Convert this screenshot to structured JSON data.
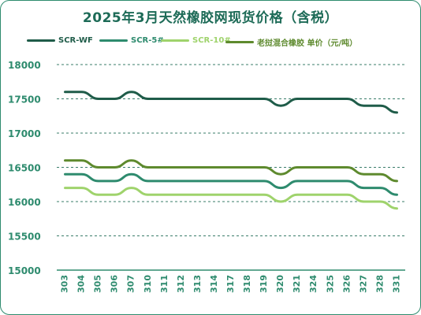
{
  "chart_data": {
    "type": "line",
    "title": "2025年3月天然橡胶网现货价格（含税）",
    "ylim": [
      15000,
      18000
    ],
    "yticks": [
      15000,
      15500,
      16000,
      16500,
      17000,
      17500,
      18000
    ],
    "grid": true,
    "legend_position": "top",
    "categories": [
      "303",
      "304",
      "305",
      "306",
      "307",
      "310",
      "311",
      "312",
      "313",
      "314",
      "317",
      "318",
      "319",
      "320",
      "321",
      "324",
      "325",
      "326",
      "327",
      "328",
      "331"
    ],
    "series": [
      {
        "name": "SCR-WF",
        "color": "#1f5c49",
        "values": [
          17600,
          17600,
          17500,
          17500,
          17600,
          17500,
          17500,
          17500,
          17500,
          17500,
          17500,
          17500,
          17500,
          17400,
          17500,
          17500,
          17500,
          17500,
          17400,
          17400,
          17300
        ]
      },
      {
        "name": "SCR-5#",
        "color": "#2e8b6e",
        "values": [
          16400,
          16400,
          16300,
          16300,
          16400,
          16300,
          16300,
          16300,
          16300,
          16300,
          16300,
          16300,
          16300,
          16200,
          16300,
          16300,
          16300,
          16300,
          16200,
          16200,
          16100
        ]
      },
      {
        "name": "SCR-10#",
        "color": "#9fd36c",
        "values": [
          16200,
          16200,
          16100,
          16100,
          16200,
          16100,
          16100,
          16100,
          16100,
          16100,
          16100,
          16100,
          16100,
          16000,
          16100,
          16100,
          16100,
          16100,
          16000,
          16000,
          15900
        ]
      },
      {
        "name": "老挝混合橡胶 单价（元/吨）",
        "color": "#5e8a2e",
        "values": [
          16600,
          16600,
          16500,
          16500,
          16600,
          16500,
          16500,
          16500,
          16500,
          16500,
          16500,
          16500,
          16500,
          16400,
          16500,
          16500,
          16500,
          16500,
          16400,
          16400,
          16300
        ]
      }
    ]
  }
}
